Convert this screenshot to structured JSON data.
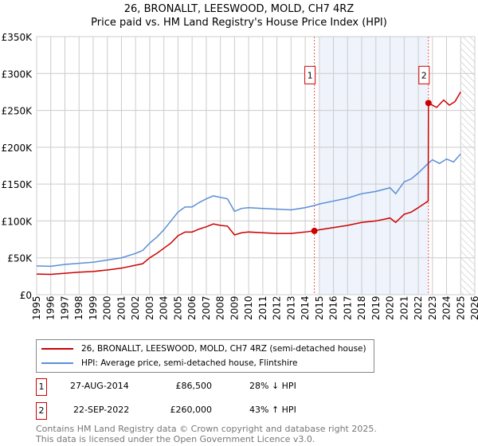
{
  "title": "26, BRONALLT, LEESWOOD, MOLD, CH7 4RZ",
  "subtitle": "Price paid vs. HM Land Registry's House Price Index (HPI)",
  "chart_data": {
    "type": "line",
    "ylim": [
      0,
      350000
    ],
    "xlim": [
      1995,
      2026
    ],
    "yticks": [
      {
        "v": 0,
        "label": "£0"
      },
      {
        "v": 50000,
        "label": "£50K"
      },
      {
        "v": 100000,
        "label": "£100K"
      },
      {
        "v": 150000,
        "label": "£150K"
      },
      {
        "v": 200000,
        "label": "£200K"
      },
      {
        "v": 250000,
        "label": "£250K"
      },
      {
        "v": 300000,
        "label": "£300K"
      },
      {
        "v": 350000,
        "label": "£350K"
      }
    ],
    "xticks": [
      "1995",
      "1996",
      "1997",
      "1998",
      "1999",
      "2000",
      "2001",
      "2002",
      "2003",
      "2004",
      "2005",
      "2006",
      "2007",
      "2008",
      "2009",
      "2010",
      "2011",
      "2012",
      "2013",
      "2014",
      "2015",
      "2016",
      "2017",
      "2018",
      "2019",
      "2020",
      "2021",
      "2022",
      "2023",
      "2024",
      "2025",
      "2026"
    ],
    "series": [
      {
        "name": "26, BRONALLT, LEESWOOD, MOLD, CH7 4RZ (semi-detached house)",
        "color": "#cc0000",
        "x": [
          1995,
          1996,
          1997,
          1998,
          1999,
          2000,
          2001,
          2002,
          2002.5,
          2003,
          2003.5,
          2004,
          2004.5,
          2005,
          2005.5,
          2006,
          2006.5,
          2007,
          2007.5,
          2008,
          2008.5,
          2009,
          2009.5,
          2010,
          2011,
          2012,
          2013,
          2014,
          2014.65,
          2015,
          2016,
          2017,
          2018,
          2019,
          2020,
          2020.4,
          2021,
          2021.5,
          2022,
          2022.7,
          2022.72,
          2023,
          2023.3,
          2023.8,
          2024.2,
          2024.6,
          2025
        ],
        "y": [
          28000,
          27500,
          29000,
          30500,
          31500,
          33500,
          36000,
          40000,
          42000,
          50000,
          56000,
          63000,
          70000,
          80000,
          85000,
          85000,
          89000,
          92000,
          96000,
          94000,
          93000,
          81000,
          84000,
          85000,
          84000,
          83000,
          83000,
          85000,
          86500,
          88000,
          91000,
          94000,
          98000,
          100000,
          104000,
          98000,
          109000,
          112000,
          118000,
          127000,
          260000,
          257000,
          254000,
          264000,
          257000,
          262000,
          275000
        ]
      },
      {
        "name": "HPI: Average price, semi-detached house, Flintshire",
        "color": "#5b8fd6",
        "x": [
          1995,
          1996,
          1997,
          1998,
          1999,
          2000,
          2001,
          2002,
          2002.5,
          2003,
          2003.5,
          2004,
          2004.5,
          2005,
          2005.5,
          2006,
          2006.5,
          2007,
          2007.5,
          2008,
          2008.5,
          2009,
          2009.5,
          2010,
          2011,
          2012,
          2013,
          2014,
          2014.65,
          2015,
          2016,
          2017,
          2018,
          2019,
          2020,
          2020.4,
          2021,
          2021.5,
          2022,
          2022.7,
          2023,
          2023.5,
          2024,
          2024.5,
          2025
        ],
        "y": [
          39000,
          38500,
          41000,
          42500,
          44000,
          47000,
          50000,
          56000,
          60000,
          70000,
          78000,
          88000,
          100000,
          112000,
          119000,
          119000,
          125000,
          130000,
          134000,
          132000,
          130000,
          113000,
          117000,
          118000,
          117000,
          116000,
          115000,
          118000,
          121000,
          123000,
          127000,
          131000,
          137000,
          140000,
          145000,
          137000,
          153000,
          157000,
          165000,
          178000,
          183000,
          178000,
          184000,
          180000,
          191000
        ]
      }
    ],
    "sales": [
      {
        "id": "1",
        "date": "27-AUG-2014",
        "price": "£86,500",
        "hpi": "28% ↓ HPI",
        "x": 2014.65,
        "y": 86500
      },
      {
        "id": "2",
        "date": "22-SEP-2022",
        "price": "£260,000",
        "hpi": "43% ↑ HPI",
        "x": 2022.72,
        "y": 260000
      }
    ],
    "shade_range": [
      2015,
      2022.72
    ],
    "forecast_from": 2025.05
  },
  "footer": [
    "Contains HM Land Registry data © Crown copyright and database right 2025.",
    "This data is licensed under the Open Government Licence v3.0."
  ]
}
